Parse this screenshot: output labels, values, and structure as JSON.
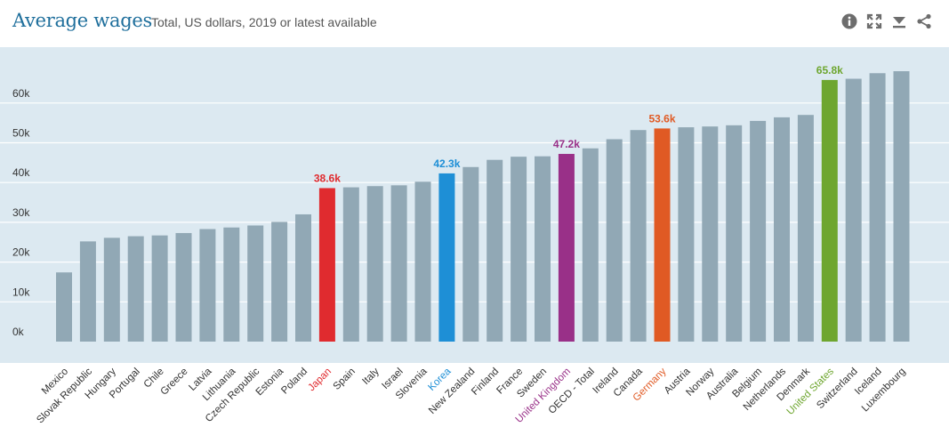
{
  "header": {
    "title": "Average wages",
    "subtitle": "Total, US dollars, 2019 or latest available"
  },
  "toolbar": {
    "icons": [
      "info-icon",
      "fullscreen-icon",
      "download-icon",
      "share-icon"
    ]
  },
  "colors": {
    "panel_bg": "#dce9f1",
    "bar_default": "#91a8b5",
    "grid": "#ffffff",
    "axis_text": "#333333",
    "title": "#1f6f9c",
    "icon": "#6d6d6d"
  },
  "chart_data": {
    "type": "bar",
    "title": "Average wages",
    "subtitle": "Total, US dollars, 2019 or latest available",
    "xlabel": "",
    "ylabel": "",
    "ylim": [
      0,
      70000
    ],
    "yticks": [
      0,
      10000,
      20000,
      30000,
      40000,
      50000,
      60000
    ],
    "ytick_labels": [
      "0k",
      "10k",
      "20k",
      "30k",
      "40k",
      "50k",
      "60k"
    ],
    "grid": true,
    "categories": [
      "Mexico",
      "Slovak Republic",
      "Hungary",
      "Portugal",
      "Chile",
      "Greece",
      "Latvia",
      "Lithuania",
      "Czech Republic",
      "Estonia",
      "Poland",
      "Japan",
      "Spain",
      "Italy",
      "Israel",
      "Slovenia",
      "Korea",
      "New Zealand",
      "Finland",
      "France",
      "Sweden",
      "United Kingdom",
      "OECD - Total",
      "Ireland",
      "Canada",
      "Germany",
      "Austria",
      "Norway",
      "Australia",
      "Belgium",
      "Netherlands",
      "Denmark",
      "United States",
      "Switzerland",
      "Iceland",
      "Luxembourg"
    ],
    "values": [
      17400,
      25200,
      26100,
      26500,
      26700,
      27300,
      28300,
      28700,
      29200,
      30100,
      32000,
      38600,
      38800,
      39100,
      39300,
      40200,
      42300,
      43900,
      45700,
      46500,
      46600,
      47200,
      48600,
      50900,
      53200,
      53600,
      53900,
      54100,
      54400,
      55500,
      56400,
      57000,
      65800,
      66100,
      67500,
      68000
    ],
    "highlights": [
      {
        "country": "Japan",
        "label": "38.6k",
        "color": "#e02b2f"
      },
      {
        "country": "Korea",
        "label": "42.3k",
        "color": "#1e8fd6"
      },
      {
        "country": "United Kingdom",
        "label": "47.2k",
        "color": "#993088"
      },
      {
        "country": "Germany",
        "label": "53.6k",
        "color": "#e05a24"
      },
      {
        "country": "United States",
        "label": "65.8k",
        "color": "#6ea62f"
      }
    ]
  }
}
